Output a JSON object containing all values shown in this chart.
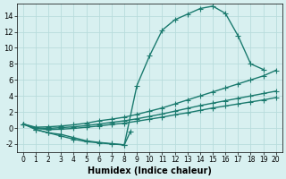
{
  "background_color": "#d8f0f0",
  "grid_color": "#b8dcdc",
  "line_color": "#1a7a6e",
  "marker": "+",
  "markersize": 4,
  "linewidth": 1.0,
  "xlabel": "Humidex (Indice chaleur)",
  "xlim": [
    -0.5,
    20.5
  ],
  "ylim": [
    -3.0,
    15.5
  ],
  "xticks": [
    0,
    1,
    2,
    3,
    4,
    5,
    6,
    7,
    8,
    9,
    10,
    11,
    12,
    13,
    14,
    15,
    16,
    17,
    18,
    19,
    20
  ],
  "yticks": [
    -2,
    0,
    2,
    4,
    6,
    8,
    10,
    12,
    14
  ],
  "curves": [
    {
      "x": [
        0,
        1,
        2,
        3,
        4,
        5,
        6,
        7,
        8,
        9,
        10,
        11,
        12,
        13,
        14,
        15,
        16,
        17,
        18,
        19
      ],
      "y": [
        0.5,
        -0.2,
        -0.6,
        -0.8,
        -1.2,
        -1.6,
        -1.8,
        -1.95,
        -2.1,
        5.3,
        9.0,
        12.2,
        13.5,
        14.2,
        14.9,
        15.2,
        14.3,
        11.5,
        8.0,
        7.3
      ]
    },
    {
      "x": [
        0,
        1,
        2,
        3,
        4,
        5,
        6,
        7,
        8,
        9,
        10,
        11,
        12,
        13,
        14,
        15,
        16,
        17,
        18,
        19,
        20
      ],
      "y": [
        0.5,
        0.1,
        0.15,
        0.25,
        0.4,
        0.6,
        0.9,
        1.1,
        1.35,
        1.7,
        2.1,
        2.5,
        3.0,
        3.5,
        4.0,
        4.5,
        5.0,
        5.5,
        6.0,
        6.5,
        7.2
      ]
    },
    {
      "x": [
        0,
        1,
        2,
        3,
        4,
        5,
        6,
        7,
        8,
        9,
        10,
        11,
        12,
        13,
        14,
        15,
        16,
        17,
        18,
        19,
        20
      ],
      "y": [
        0.5,
        0.0,
        -0.05,
        0.05,
        0.15,
        0.3,
        0.5,
        0.7,
        0.9,
        1.15,
        1.45,
        1.75,
        2.1,
        2.45,
        2.8,
        3.1,
        3.4,
        3.7,
        4.0,
        4.3,
        4.6
      ]
    },
    {
      "x": [
        0,
        1,
        2,
        3,
        4,
        5,
        6,
        7,
        8,
        9,
        10,
        11,
        12,
        13,
        14,
        15,
        16,
        17,
        18,
        19,
        20
      ],
      "y": [
        0.5,
        -0.05,
        -0.2,
        -0.15,
        -0.05,
        0.1,
        0.25,
        0.45,
        0.6,
        0.85,
        1.1,
        1.35,
        1.65,
        1.9,
        2.2,
        2.5,
        2.75,
        3.0,
        3.25,
        3.5,
        3.8
      ]
    },
    {
      "x": [
        1,
        2,
        3,
        4,
        5,
        6,
        7,
        8,
        8.5
      ],
      "y": [
        -0.2,
        -0.6,
        -1.0,
        -1.4,
        -1.7,
        -1.85,
        -2.0,
        -2.1,
        -0.4
      ]
    }
  ]
}
